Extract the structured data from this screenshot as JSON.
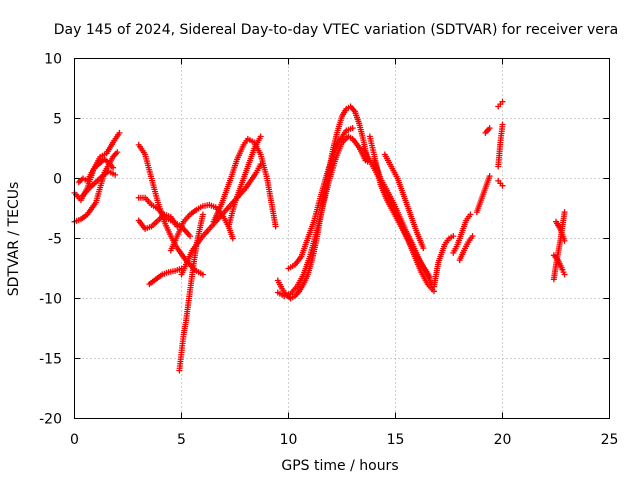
{
  "chart_data": {
    "type": "scatter",
    "title": "Day 145 of 2024, Sidereal Day-to-day VTEC variation (SDTVAR) for receiver vera",
    "xlabel": "GPS time / hours",
    "ylabel": "SDTVAR / TECUs",
    "xlim": [
      0,
      25
    ],
    "ylim": [
      -20,
      10
    ],
    "xticks": [
      "0",
      "5",
      "10",
      "15",
      "20",
      "25"
    ],
    "yticks": [
      "10",
      "5",
      "0",
      "-5",
      "-10",
      "-15",
      "-20"
    ],
    "grid": true,
    "marker": "+",
    "color": "#ff0000",
    "series": [
      {
        "name": "trace-1",
        "x": [
          0.0,
          0.3,
          0.6,
          1.0,
          1.4,
          1.8,
          2.0
        ],
        "y": [
          -3.6,
          -3.4,
          -3.0,
          -2.0,
          0.5,
          1.8,
          2.2
        ]
      },
      {
        "name": "trace-2",
        "x": [
          0.0,
          0.3,
          0.6,
          0.9,
          1.2,
          1.5,
          1.8,
          2.1
        ],
        "y": [
          -1.2,
          -1.8,
          -0.8,
          0.8,
          1.8,
          2.1,
          3.0,
          3.8
        ]
      },
      {
        "name": "trace-3",
        "x": [
          0.2,
          0.4,
          0.6,
          0.8,
          1.0,
          1.2,
          1.4,
          1.6,
          1.8
        ],
        "y": [
          -0.3,
          0.0,
          -0.2,
          0.5,
          1.0,
          1.3,
          1.6,
          1.3,
          0.9
        ]
      },
      {
        "name": "trace-4",
        "x": [
          0.4,
          0.7,
          1.0,
          1.3,
          1.6,
          1.9
        ],
        "y": [
          -1.4,
          -0.8,
          -0.3,
          0.2,
          0.6,
          0.3
        ]
      },
      {
        "name": "trace-5",
        "x": [
          3.0,
          3.3,
          3.6,
          3.9,
          4.2,
          4.5,
          4.8,
          5.2,
          5.6,
          6.0
        ],
        "y": [
          2.8,
          2.0,
          0.0,
          -2.0,
          -3.6,
          -4.8,
          -5.8,
          -6.8,
          -7.6,
          -8.0
        ]
      },
      {
        "name": "trace-6",
        "x": [
          3.0,
          3.3,
          3.6,
          3.9,
          4.2,
          4.5,
          4.8
        ],
        "y": [
          -3.5,
          -4.2,
          -4.0,
          -3.5,
          -3.0,
          -3.2,
          -4.0
        ]
      },
      {
        "name": "trace-7",
        "x": [
          3.0,
          3.3,
          3.6,
          3.9,
          4.2,
          4.6,
          5.0,
          5.4
        ],
        "y": [
          -1.6,
          -1.6,
          -2.2,
          -2.5,
          -3.2,
          -3.6,
          -4.0,
          -4.8
        ]
      },
      {
        "name": "trace-8",
        "x": [
          3.5,
          3.8,
          4.1,
          4.4,
          4.7,
          5.0
        ],
        "y": [
          -8.8,
          -8.4,
          -8.0,
          -7.8,
          -7.7,
          -7.5
        ]
      },
      {
        "name": "trace-9",
        "x": [
          4.9,
          5.0,
          5.1,
          5.2,
          5.35,
          5.5,
          5.7,
          6.0
        ],
        "y": [
          -16.0,
          -14.5,
          -13.0,
          -12.0,
          -10.0,
          -8.0,
          -5.5,
          -3.0
        ]
      },
      {
        "name": "trace-10",
        "x": [
          4.5,
          4.8,
          5.1,
          5.4,
          5.7,
          6.0,
          6.3,
          6.6,
          6.9,
          7.2,
          7.4
        ],
        "y": [
          -6.0,
          -4.8,
          -3.6,
          -3.0,
          -2.6,
          -2.3,
          -2.2,
          -2.4,
          -3.0,
          -4.0,
          -5.0
        ]
      },
      {
        "name": "trace-11",
        "x": [
          6.5,
          6.9,
          7.3,
          7.6,
          7.9,
          8.1,
          8.4,
          8.7,
          9.0,
          9.2,
          9.4
        ],
        "y": [
          -3.6,
          -2.0,
          0.0,
          1.6,
          2.8,
          3.3,
          3.0,
          2.0,
          0.0,
          -2.0,
          -4.0
        ]
      },
      {
        "name": "trace-12",
        "x": [
          5.0,
          5.5,
          6.0,
          6.5,
          7.0,
          7.5,
          8.0,
          8.5,
          8.7
        ],
        "y": [
          -8.0,
          -6.0,
          -4.8,
          -3.8,
          -2.8,
          -1.8,
          -0.8,
          0.5,
          1.2
        ]
      },
      {
        "name": "trace-13",
        "x": [
          7.2,
          7.5,
          7.8,
          8.1,
          8.4,
          8.7
        ],
        "y": [
          -4.0,
          -2.0,
          -0.5,
          1.0,
          2.5,
          3.5
        ]
      },
      {
        "name": "trace-14",
        "x": [
          9.5,
          9.7,
          9.9,
          10.1,
          10.3,
          10.5,
          10.7,
          10.9,
          11.1,
          11.3,
          11.5,
          11.7,
          11.9,
          12.1,
          12.3,
          12.5,
          12.7,
          12.9,
          13.1,
          13.3,
          13.5,
          13.7
        ],
        "y": [
          -8.5,
          -9.2,
          -9.7,
          -10.0,
          -9.8,
          -9.4,
          -8.8,
          -8.0,
          -6.8,
          -5.2,
          -3.2,
          -1.3,
          0.8,
          2.6,
          4.0,
          5.2,
          5.8,
          6.0,
          5.6,
          4.6,
          3.2,
          1.4
        ]
      },
      {
        "name": "trace-15",
        "x": [
          9.5,
          9.8,
          10.1,
          10.4,
          10.7,
          11.0,
          11.3,
          11.6,
          11.9,
          12.2,
          12.5,
          12.8,
          13.0,
          13.3,
          13.6
        ],
        "y": [
          -9.5,
          -9.8,
          -9.6,
          -9.0,
          -8.0,
          -6.5,
          -4.5,
          -2.3,
          -0.2,
          1.6,
          3.0,
          3.5,
          3.3,
          2.6,
          1.5
        ]
      },
      {
        "name": "trace-16",
        "x": [
          10.0,
          10.3,
          10.6,
          10.9,
          11.2,
          11.5,
          11.8,
          12.1,
          12.4,
          12.7,
          13.0
        ],
        "y": [
          -7.5,
          -7.2,
          -6.5,
          -5.0,
          -3.5,
          -1.5,
          0.4,
          2.0,
          3.2,
          4.0,
          4.2
        ]
      },
      {
        "name": "trace-17",
        "x": [
          13.5,
          13.8,
          14.1,
          14.4,
          14.7,
          15.0,
          15.3,
          15.6,
          15.9,
          16.2,
          16.5,
          16.8
        ],
        "y": [
          2.5,
          1.5,
          0.5,
          -0.5,
          -1.5,
          -2.8,
          -4.0,
          -5.2,
          -6.5,
          -7.8,
          -8.8,
          -9.4
        ]
      },
      {
        "name": "trace-18",
        "x": [
          14.0,
          14.3,
          14.6,
          14.9,
          15.2,
          15.5,
          15.8,
          16.1,
          16.4,
          16.7
        ],
        "y": [
          1.5,
          0.0,
          -1.0,
          -2.0,
          -3.2,
          -4.4,
          -5.5,
          -6.7,
          -7.8,
          -8.8
        ]
      },
      {
        "name": "trace-19",
        "x": [
          14.5,
          14.8,
          15.1,
          15.4,
          15.7,
          16.0,
          16.3
        ],
        "y": [
          2.0,
          1.0,
          0.0,
          -1.5,
          -3.0,
          -4.5,
          -5.8
        ]
      },
      {
        "name": "trace-20",
        "x": [
          13.8,
          14.0,
          14.3,
          14.6,
          14.9,
          15.2,
          15.5,
          15.8,
          16.1,
          16.4,
          16.6
        ],
        "y": [
          3.5,
          2.0,
          -0.5,
          -1.8,
          -2.8,
          -3.8,
          -4.8,
          -5.8,
          -6.8,
          -7.6,
          -8.2
        ]
      },
      {
        "name": "trace-21",
        "x": [
          16.8,
          16.9,
          17.0,
          17.1,
          17.3,
          17.5,
          17.7
        ],
        "y": [
          -9.0,
          -8.0,
          -7.0,
          -6.5,
          -5.5,
          -5.0,
          -4.8
        ]
      },
      {
        "name": "trace-22",
        "x": [
          17.7,
          17.9,
          18.1,
          18.3,
          18.5
        ],
        "y": [
          -6.2,
          -5.5,
          -4.5,
          -3.5,
          -3.0
        ]
      },
      {
        "name": "trace-23",
        "x": [
          18.0,
          18.2,
          18.4,
          18.6
        ],
        "y": [
          -6.8,
          -6.0,
          -5.3,
          -4.8
        ]
      },
      {
        "name": "trace-24",
        "x": [
          18.8,
          19.0,
          19.2,
          19.4
        ],
        "y": [
          -2.8,
          -1.8,
          -0.8,
          0.2
        ]
      },
      {
        "name": "trace-25",
        "x": [
          19.2,
          19.4
        ],
        "y": [
          3.8,
          4.2
        ]
      },
      {
        "name": "trace-26",
        "x": [
          19.8,
          19.9,
          20.0
        ],
        "y": [
          1.0,
          3.0,
          4.5
        ]
      },
      {
        "name": "trace-27",
        "x": [
          19.8,
          19.9,
          20.0
        ],
        "y": [
          6.0,
          6.2,
          6.4
        ]
      },
      {
        "name": "trace-28",
        "x": [
          19.8,
          19.9,
          20.0
        ],
        "y": [
          -0.2,
          -0.4,
          -0.6
        ]
      },
      {
        "name": "trace-29",
        "x": [
          22.4,
          22.5,
          22.6,
          22.7,
          22.8,
          22.9
        ],
        "y": [
          -8.4,
          -7.2,
          -6.2,
          -5.2,
          -4.0,
          -2.8
        ]
      },
      {
        "name": "trace-30",
        "x": [
          22.4,
          22.6,
          22.8,
          22.9
        ],
        "y": [
          -6.4,
          -6.8,
          -7.6,
          -8.0
        ]
      },
      {
        "name": "trace-31",
        "x": [
          22.5,
          22.7,
          22.9
        ],
        "y": [
          -3.6,
          -4.2,
          -5.2
        ]
      }
    ]
  }
}
